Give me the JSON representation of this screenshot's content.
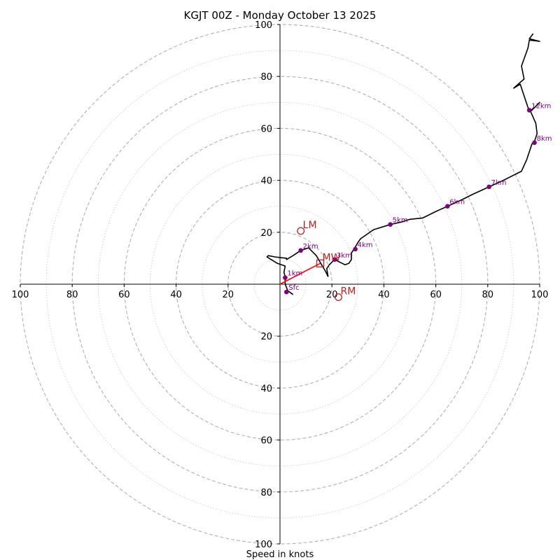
{
  "chart_data": {
    "type": "line",
    "title": "KGJT 00Z - Monday October 13 2025",
    "xlabel": "Speed in knots",
    "ylabel": "",
    "xlim": [
      -100,
      100
    ],
    "ylim": [
      -100,
      100
    ],
    "major_ring_interval": 20,
    "minor_ring_interval": 10,
    "tick_labels": {
      "x": [
        "100",
        "80",
        "60",
        "40",
        "20",
        "20",
        "40",
        "60",
        "80",
        "100"
      ],
      "y": [
        "100",
        "80",
        "60",
        "40",
        "20",
        "20",
        "40",
        "60",
        "80",
        "100"
      ]
    },
    "series": [
      {
        "name": "hodograph",
        "color": "#000000",
        "points": [
          [
            5,
            -4
          ],
          [
            3,
            -2.5
          ],
          [
            2,
            0
          ],
          [
            2,
            3
          ],
          [
            1.5,
            4.5
          ],
          [
            2,
            7
          ],
          [
            -1,
            8
          ],
          [
            -5,
            10.5
          ],
          [
            -4.5,
            11
          ],
          [
            -2,
            10.5
          ],
          [
            2.5,
            10
          ],
          [
            2.5,
            9.5
          ],
          [
            5,
            11
          ],
          [
            8,
            13
          ],
          [
            11,
            14
          ],
          [
            14,
            11
          ],
          [
            16,
            7.5
          ],
          [
            17.5,
            5
          ],
          [
            18.5,
            3
          ],
          [
            18,
            6
          ],
          [
            19,
            7.5
          ],
          [
            21,
            9.5
          ],
          [
            24,
            8
          ],
          [
            25,
            7.5
          ],
          [
            26.5,
            8
          ],
          [
            27.5,
            9.5
          ],
          [
            27.5,
            11
          ],
          [
            27.5,
            12
          ],
          [
            28.5,
            13.5
          ],
          [
            30,
            16
          ],
          [
            31,
            17.5
          ],
          [
            36,
            21
          ],
          [
            42.5,
            23
          ],
          [
            47,
            24
          ],
          [
            50,
            25
          ],
          [
            55,
            25.5
          ],
          [
            60,
            28
          ],
          [
            64.5,
            30
          ],
          [
            70,
            32.5
          ],
          [
            74,
            34.5
          ],
          [
            80.5,
            37.5
          ],
          [
            86,
            40
          ],
          [
            93,
            43.5
          ],
          [
            95,
            48
          ],
          [
            97,
            54
          ],
          [
            98,
            55
          ],
          [
            99,
            58
          ],
          [
            98.5,
            62
          ],
          [
            96.5,
            66.5
          ],
          [
            98.5,
            68.5
          ],
          [
            100,
            70
          ],
          [
            98,
            68
          ],
          [
            96,
            66.5
          ],
          [
            94.5,
            71
          ],
          [
            92.5,
            77
          ],
          [
            90,
            75.5
          ],
          [
            94,
            79
          ],
          [
            93,
            84
          ],
          [
            95.5,
            91
          ],
          [
            96,
            94
          ],
          [
            100,
            93.5
          ],
          [
            96,
            94.5
          ],
          [
            97.5,
            96.5
          ]
        ]
      },
      {
        "name": "mean-wind",
        "color": "#ff0000",
        "points": [
          [
            0,
            0
          ],
          [
            15.5,
            8
          ]
        ]
      }
    ],
    "height_markers": [
      {
        "label": "Sfc",
        "u": 2.5,
        "v": -3
      },
      {
        "label": "1km",
        "u": 2,
        "v": 2.5
      },
      {
        "label": "2km",
        "u": 8,
        "v": 13
      },
      {
        "label": "3km",
        "u": 21,
        "v": 9.5
      },
      {
        "label": "4km",
        "u": 29,
        "v": 13.5
      },
      {
        "label": "5km",
        "u": 42.5,
        "v": 23
      },
      {
        "label": "6km",
        "u": 64.5,
        "v": 30
      },
      {
        "label": "7km",
        "u": 80.5,
        "v": 37.5
      },
      {
        "label": "8km",
        "u": 98,
        "v": 54.5
      },
      {
        "label": "12km",
        "u": 96,
        "v": 67
      }
    ],
    "storm_motions": [
      {
        "label": "LM",
        "u": 8,
        "v": 20.5,
        "marker": "circle"
      },
      {
        "label": "MW",
        "u": 15.5,
        "v": 8,
        "marker": "square"
      },
      {
        "label": "RM",
        "u": 22.5,
        "v": -5,
        "marker": "circle"
      }
    ],
    "colors": {
      "hodograph": "#000000",
      "height_marker": "#800080",
      "storm_motion": "#b22222",
      "mean_wind": "#ff0000",
      "ring_major": "#b0b0b0",
      "ring_minor": "#c8c8c8"
    }
  }
}
